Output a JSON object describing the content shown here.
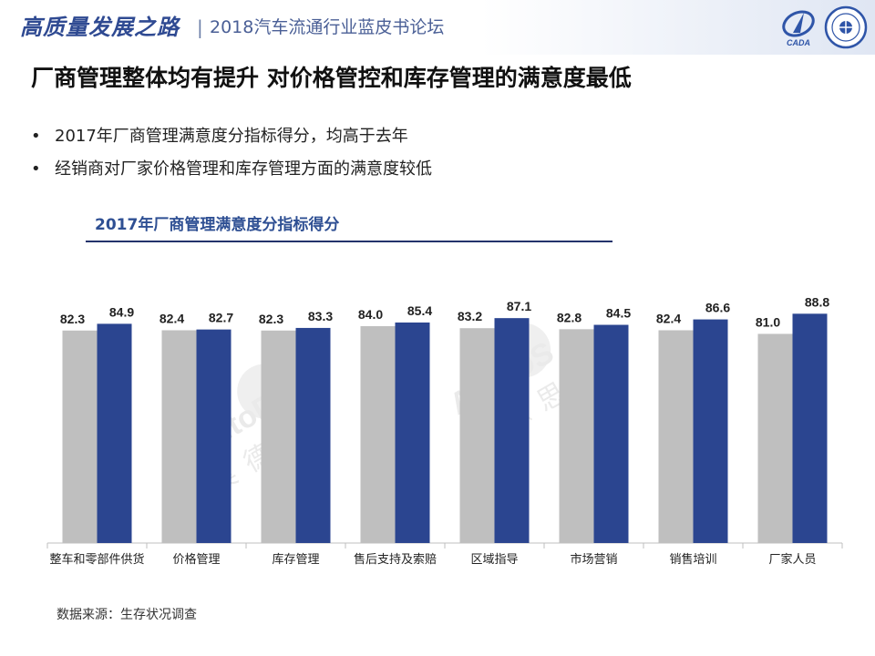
{
  "header": {
    "slogan": "高质量发展之路",
    "separator": "|",
    "subtitle": "2018汽车流通行业蓝皮书论坛",
    "logo_left_text": "CADA"
  },
  "page": {
    "title": "厂商管理整体均有提升  对价格管控和库存管理的满意度最低",
    "bullet_symbol": "•",
    "bullets": [
      "2017年厂商管理满意度分指标得分，均高于去年",
      "经销商对厂家价格管理和库存管理方面的满意度较低"
    ],
    "source": "数据来源：生存状况调查"
  },
  "watermark": {
    "brand": "AutoDS",
    "name": "奥德思"
  },
  "colors": {
    "series_prev": "#bfbfbf",
    "series_curr": "#2b4590",
    "heading": "#2e4f93",
    "header_text": "#2f4a92"
  },
  "chart_data": {
    "type": "bar",
    "title": "2017年厂商管理满意度分指标得分",
    "categories": [
      "整车和零部件供货",
      "价格管理",
      "库存管理",
      "售后支持及索赔",
      "区域指导",
      "市场营销",
      "销售培训",
      "厂家人员"
    ],
    "series": [
      {
        "values": [
          82.3,
          82.4,
          82.3,
          84.0,
          83.2,
          82.8,
          82.4,
          81.0
        ]
      },
      {
        "values": [
          84.9,
          82.7,
          83.3,
          85.4,
          87.1,
          84.5,
          86.6,
          88.8
        ]
      }
    ],
    "xlabel": "",
    "ylabel": "",
    "ylim": [
      0,
      100
    ],
    "grid": false,
    "legend": "none",
    "data_labels": true
  }
}
